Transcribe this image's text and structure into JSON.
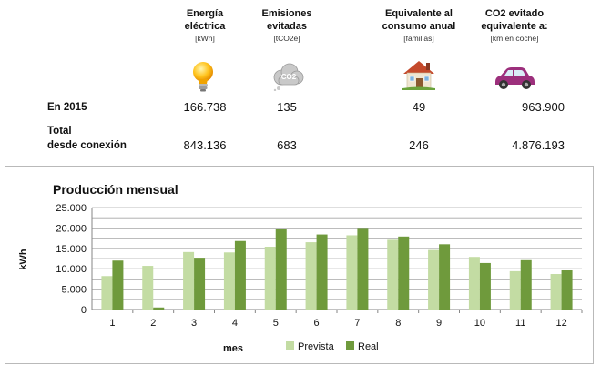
{
  "summary": {
    "columns": [
      {
        "title_lines": [
          "Energía",
          "eléctrica"
        ],
        "unit": "[kWh]",
        "icon": "lightbulb-icon"
      },
      {
        "title_lines": [
          "Emisiones",
          "evitadas"
        ],
        "unit": "[tCO2e]",
        "icon": "co2-cloud-icon"
      },
      {
        "title_lines": [
          "Equivalente al",
          "consumo anual"
        ],
        "unit": "[familias]",
        "icon": "house-icon"
      },
      {
        "title_lines": [
          "CO2 evitado",
          "equivalente a:"
        ],
        "unit": "[km en coche]",
        "icon": "car-icon"
      }
    ],
    "co2_icon_text": "CO2",
    "rows": [
      {
        "label_lines": [
          "En 2015"
        ],
        "values": [
          "166.738",
          "135",
          "49",
          "963.900"
        ]
      },
      {
        "label_lines": [
          "Total",
          "desde conexión"
        ],
        "values": [
          "843.136",
          "683",
          "246",
          "4.876.193"
        ]
      }
    ]
  },
  "colors": {
    "prevista": "#c3dca3",
    "real": "#6f9a3c",
    "grid": "#a6a6a6",
    "axis": "#868686"
  },
  "chart_data": {
    "type": "bar",
    "title": "Producción mensual",
    "xlabel": "mes",
    "ylabel": "kWh",
    "ylim": [
      0,
      25000
    ],
    "yticks": [
      0,
      2500,
      5000,
      7500,
      10000,
      12500,
      15000,
      17500,
      20000,
      22500,
      25000
    ],
    "ytick_labels": [
      "0",
      "",
      "5.000",
      "",
      "10.000",
      "",
      "15.000",
      "",
      "20.000",
      "",
      "25.000"
    ],
    "categories": [
      "1",
      "2",
      "3",
      "4",
      "5",
      "6",
      "7",
      "8",
      "9",
      "10",
      "11",
      "12"
    ],
    "series": [
      {
        "name": "Prevista",
        "values": [
          8200,
          10700,
          14100,
          14000,
          15400,
          16500,
          18200,
          17100,
          14600,
          12900,
          9400,
          8700
        ]
      },
      {
        "name": "Real",
        "values": [
          12000,
          500,
          12700,
          16800,
          19700,
          18400,
          20000,
          17900,
          16000,
          11400,
          12100,
          9600
        ]
      }
    ],
    "legend": "bottom",
    "grid": true
  }
}
